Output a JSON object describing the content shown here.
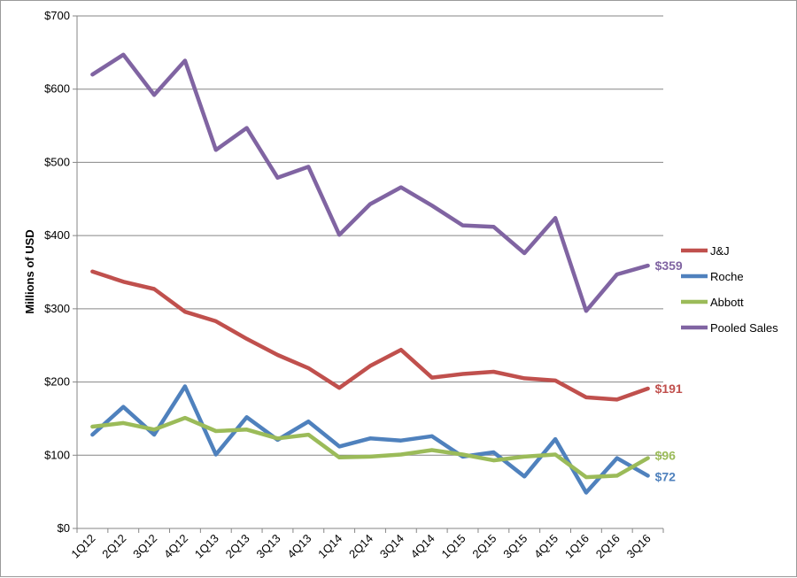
{
  "chart_data": {
    "type": "line",
    "title": "",
    "xlabel": "",
    "ylabel": "Millions of USD",
    "ylim": [
      0,
      700
    ],
    "y_ticks": [
      "$0",
      "$100",
      "$200",
      "$300",
      "$400",
      "$500",
      "$600",
      "$700"
    ],
    "y_tick_values": [
      0,
      100,
      200,
      300,
      400,
      500,
      600,
      700
    ],
    "grid": true,
    "legend_position": "right",
    "categories": [
      "1Q12",
      "2Q12",
      "3Q12",
      "4Q12",
      "1Q13",
      "2Q13",
      "3Q13",
      "4Q13",
      "1Q14",
      "2Q14",
      "3Q14",
      "4Q14",
      "1Q15",
      "2Q15",
      "3Q15",
      "4Q15",
      "1Q16",
      "2Q16",
      "3Q16"
    ],
    "series": [
      {
        "name": "J&J",
        "color": "#c0504d",
        "values": [
          351,
          337,
          327,
          296,
          283,
          259,
          237,
          219,
          192,
          222,
          244,
          206,
          211,
          214,
          205,
          202,
          179,
          176,
          191
        ],
        "end_label": "$191"
      },
      {
        "name": "Roche",
        "color": "#4f81bd",
        "values": [
          128,
          166,
          128,
          194,
          101,
          152,
          121,
          146,
          112,
          123,
          120,
          126,
          98,
          104,
          71,
          122,
          49,
          96,
          72
        ],
        "end_label": "$72"
      },
      {
        "name": "Abbott",
        "color": "#9bbb59",
        "values": [
          139,
          144,
          135,
          151,
          133,
          135,
          123,
          128,
          97,
          98,
          101,
          107,
          101,
          93,
          98,
          101,
          70,
          72,
          96
        ],
        "end_label": "$96"
      },
      {
        "name": "Pooled Sales",
        "color": "#8064a2",
        "values": [
          620,
          647,
          592,
          639,
          517,
          547,
          479,
          494,
          401,
          443,
          466,
          441,
          414,
          412,
          376,
          424,
          297,
          347,
          359
        ],
        "end_label": "$359"
      }
    ]
  }
}
